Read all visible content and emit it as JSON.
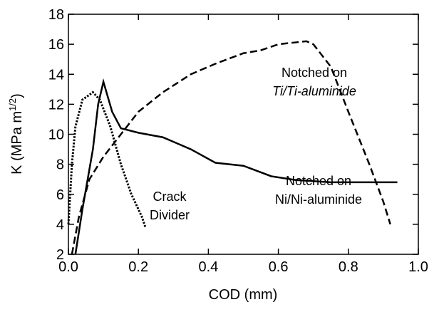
{
  "chart_data": {
    "type": "line",
    "xlabel": "COD (mm)",
    "ylabel": {
      "text": "K (MPa m",
      "sup": "1/2",
      "suffix": ")"
    },
    "annotations": {
      "ti": [
        "Notched on",
        "Ti/Ti-aluminide"
      ],
      "ni": [
        "Notched on",
        "Ni/Ni-aluminide"
      ],
      "crack": [
        "Crack",
        "Divider"
      ]
    },
    "xlim": [
      0,
      1
    ],
    "ylim": [
      2,
      18
    ],
    "xticks": [
      {
        "value": 0,
        "label": "0.0"
      },
      0.2,
      0.4,
      0.6,
      0.8,
      {
        "value": 1,
        "label": "1.0"
      }
    ],
    "yticks": [
      2,
      4,
      6,
      8,
      10,
      12,
      14,
      16,
      18
    ],
    "series": [
      {
        "color": "#000000",
        "dash": "solid",
        "x": [
          0.02,
          0.04,
          0.07,
          0.085,
          0.1,
          0.125,
          0.15,
          0.2,
          0.27,
          0.35,
          0.42,
          0.5,
          0.58,
          0.65,
          0.75,
          0.85,
          0.94
        ],
        "values": [
          2,
          5,
          9,
          12,
          13.5,
          11.5,
          10.4,
          10.1,
          9.8,
          9,
          8.1,
          7.9,
          7.2,
          6.95,
          6.8,
          6.8,
          6.8
        ]
      },
      {
        "color": "#000000",
        "dash": "dashed",
        "x": [
          0.01,
          0.03,
          0.06,
          0.1,
          0.15,
          0.2,
          0.27,
          0.35,
          0.42,
          0.5,
          0.55,
          0.6,
          0.68,
          0.7,
          0.75,
          0.8,
          0.86,
          0.9,
          0.92
        ],
        "values": [
          2,
          4.5,
          7,
          8.5,
          10,
          11.5,
          12.8,
          14,
          14.7,
          15.4,
          15.6,
          16,
          16.2,
          16,
          14.5,
          11.5,
          8,
          5.5,
          4
        ]
      },
      {
        "color": "#000000",
        "dash": "dotted",
        "x": [
          0,
          0.01,
          0.02,
          0.04,
          0.07,
          0.09,
          0.12,
          0.15,
          0.18,
          0.21,
          0.22
        ],
        "values": [
          4,
          8,
          10.5,
          12.3,
          12.8,
          12.3,
          10.5,
          8,
          6,
          4.5,
          3.8
        ]
      }
    ]
  }
}
